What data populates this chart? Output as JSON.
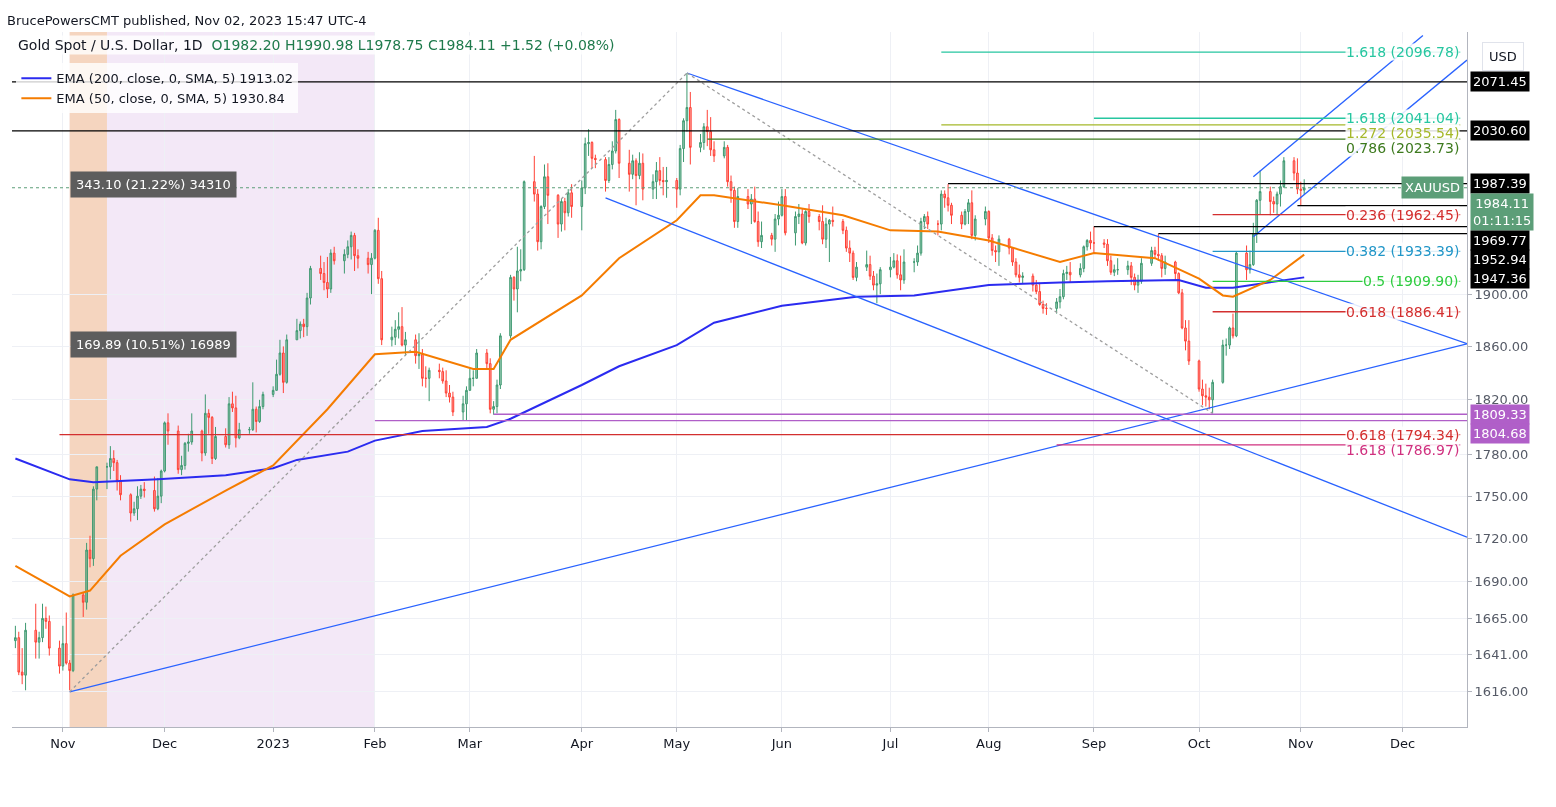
{
  "chart_data": {
    "type": "candlestick",
    "title": "Gold Spot / U.S. Dollar, 1D",
    "subtitle": "O1982.20 H1990.98 L1978.75 C1984.11 +1.52 (+0.08%)",
    "ylabel": "USD",
    "x": [
      "2022-10-18",
      "2022-10-19",
      "2022-10-20",
      "2022-10-21",
      "2022-10-24",
      "2022-10-25",
      "2022-10-26",
      "2022-10-27",
      "2022-10-28",
      "2022-10-31",
      "2022-11-01",
      "2022-11-02",
      "2022-11-03",
      "2022-11-04",
      "2022-11-07",
      "2022-11-08",
      "2022-11-09",
      "2022-11-10",
      "2022-11-11",
      "2022-11-14",
      "2022-11-15",
      "2022-11-16",
      "2022-11-17",
      "2022-11-18",
      "2022-11-21",
      "2022-11-22",
      "2022-11-23",
      "2022-11-24",
      "2022-11-25",
      "2022-11-28",
      "2022-11-29",
      "2022-11-30",
      "2022-12-01",
      "2022-12-02",
      "2022-12-05",
      "2022-12-06",
      "2022-12-07",
      "2022-12-08",
      "2022-12-09",
      "2022-12-12",
      "2022-12-13",
      "2022-12-14",
      "2022-12-15",
      "2022-12-16",
      "2022-12-19",
      "2022-12-20",
      "2022-12-21",
      "2022-12-22",
      "2022-12-23",
      "2022-12-26",
      "2022-12-27",
      "2022-12-28",
      "2022-12-29",
      "2022-12-30",
      "2023-01-02",
      "2023-01-03",
      "2023-01-04",
      "2023-01-05",
      "2023-01-06",
      "2023-01-09",
      "2023-01-10",
      "2023-01-11",
      "2023-01-12",
      "2023-01-13",
      "2023-01-16",
      "2023-01-17",
      "2023-01-18",
      "2023-01-19",
      "2023-01-20",
      "2023-01-23",
      "2023-01-24",
      "2023-01-25",
      "2023-01-26",
      "2023-01-27",
      "2023-01-30",
      "2023-01-31",
      "2023-02-01",
      "2023-02-02",
      "2023-02-03",
      "2023-02-06",
      "2023-02-07",
      "2023-02-08",
      "2023-02-09",
      "2023-02-10",
      "2023-02-13",
      "2023-02-14",
      "2023-02-15",
      "2023-02-16",
      "2023-02-17",
      "2023-02-20",
      "2023-02-21",
      "2023-02-22",
      "2023-02-23",
      "2023-02-24",
      "2023-02-27",
      "2023-02-28",
      "2023-03-01",
      "2023-03-02",
      "2023-03-03",
      "2023-03-06",
      "2023-03-07",
      "2023-03-08",
      "2023-03-09",
      "2023-03-10",
      "2023-03-13",
      "2023-03-14",
      "2023-03-15",
      "2023-03-16",
      "2023-03-17",
      "2023-03-20",
      "2023-03-21",
      "2023-03-22",
      "2023-03-23",
      "2023-03-24",
      "2023-03-27",
      "2023-03-28",
      "2023-03-29",
      "2023-03-30",
      "2023-03-31",
      "2023-04-03",
      "2023-04-04",
      "2023-04-05",
      "2023-04-06",
      "2023-04-07",
      "2023-04-10",
      "2023-04-11",
      "2023-04-12",
      "2023-04-13",
      "2023-04-14",
      "2023-04-17",
      "2023-04-18",
      "2023-04-19",
      "2023-04-20",
      "2023-04-21",
      "2023-04-24",
      "2023-04-25",
      "2023-04-26",
      "2023-04-27",
      "2023-04-28",
      "2023-05-01",
      "2023-05-02",
      "2023-05-03",
      "2023-05-04",
      "2023-05-05",
      "2023-05-08",
      "2023-05-09",
      "2023-05-10",
      "2023-05-11",
      "2023-05-12",
      "2023-05-15",
      "2023-05-16",
      "2023-05-17",
      "2023-05-18",
      "2023-05-19",
      "2023-05-22",
      "2023-05-23",
      "2023-05-24",
      "2023-05-25",
      "2023-05-26",
      "2023-05-29",
      "2023-05-30",
      "2023-05-31",
      "2023-06-01",
      "2023-06-02",
      "2023-06-05",
      "2023-06-06",
      "2023-06-07",
      "2023-06-08",
      "2023-06-09",
      "2023-06-12",
      "2023-06-13",
      "2023-06-14",
      "2023-06-15",
      "2023-06-16",
      "2023-06-19",
      "2023-06-20",
      "2023-06-21",
      "2023-06-22",
      "2023-06-23",
      "2023-06-26",
      "2023-06-27",
      "2023-06-28",
      "2023-06-29",
      "2023-06-30",
      "2023-07-03",
      "2023-07-04",
      "2023-07-05",
      "2023-07-06",
      "2023-07-07",
      "2023-07-10",
      "2023-07-11",
      "2023-07-12",
      "2023-07-13",
      "2023-07-14",
      "2023-07-17",
      "2023-07-18",
      "2023-07-19",
      "2023-07-20",
      "2023-07-21",
      "2023-07-24",
      "2023-07-25",
      "2023-07-26",
      "2023-07-27",
      "2023-07-28",
      "2023-07-31",
      "2023-08-01",
      "2023-08-02",
      "2023-08-03",
      "2023-08-04",
      "2023-08-07",
      "2023-08-08",
      "2023-08-09",
      "2023-08-10",
      "2023-08-11",
      "2023-08-14",
      "2023-08-15",
      "2023-08-16",
      "2023-08-17",
      "2023-08-18",
      "2023-08-21",
      "2023-08-22",
      "2023-08-23",
      "2023-08-24",
      "2023-08-25",
      "2023-08-28",
      "2023-08-29",
      "2023-08-30",
      "2023-08-31",
      "2023-09-01",
      "2023-09-04",
      "2023-09-05",
      "2023-09-06",
      "2023-09-07",
      "2023-09-08",
      "2023-09-11",
      "2023-09-12",
      "2023-09-13",
      "2023-09-14",
      "2023-09-15",
      "2023-09-18",
      "2023-09-19",
      "2023-09-20",
      "2023-09-21",
      "2023-09-22",
      "2023-09-25",
      "2023-09-26",
      "2023-09-27",
      "2023-09-28",
      "2023-09-29",
      "2023-10-02",
      "2023-10-03",
      "2023-10-04",
      "2023-10-05",
      "2023-10-06",
      "2023-10-09",
      "2023-10-10",
      "2023-10-11",
      "2023-10-12",
      "2023-10-13",
      "2023-10-16",
      "2023-10-17",
      "2023-10-18",
      "2023-10-19",
      "2023-10-20",
      "2023-10-23",
      "2023-10-24",
      "2023-10-25",
      "2023-10-26",
      "2023-10-27",
      "2023-10-30",
      "2023-10-31",
      "2023-11-01",
      "2023-11-02"
    ],
    "ohlc": [
      [
        1650,
        1660,
        1645,
        1652
      ],
      [
        1652,
        1656,
        1627,
        1629
      ],
      [
        1629,
        1645,
        1621,
        1627
      ],
      [
        1627,
        1662,
        1617,
        1657
      ],
      [
        1657,
        1675,
        1638,
        1649
      ],
      [
        1649,
        1656,
        1638,
        1652
      ],
      [
        1652,
        1675,
        1649,
        1665
      ],
      [
        1665,
        1673,
        1658,
        1663
      ],
      [
        1663,
        1667,
        1640,
        1645
      ],
      [
        1645,
        1650,
        1628,
        1633
      ],
      [
        1633,
        1660,
        1630,
        1648
      ],
      [
        1648,
        1669,
        1634,
        1635
      ],
      [
        1635,
        1637,
        1617,
        1630
      ],
      [
        1630,
        1682,
        1629,
        1681
      ],
      [
        1681,
        1683,
        1666,
        1676
      ],
      [
        1676,
        1717,
        1671,
        1712
      ],
      [
        1712,
        1722,
        1700,
        1706
      ],
      [
        1706,
        1757,
        1701,
        1755
      ],
      [
        1755,
        1771,
        1747,
        1771
      ],
      [
        1771,
        1774,
        1755,
        1771
      ],
      [
        1771,
        1786,
        1762,
        1777
      ],
      [
        1777,
        1783,
        1768,
        1774
      ],
      [
        1774,
        1776,
        1754,
        1761
      ],
      [
        1761,
        1765,
        1747,
        1751
      ],
      [
        1751,
        1752,
        1732,
        1738
      ],
      [
        1738,
        1746,
        1736,
        1741
      ],
      [
        1741,
        1757,
        1733,
        1750
      ],
      [
        1750,
        1758,
        1748,
        1755
      ],
      [
        1755,
        1760,
        1749,
        1754
      ],
      [
        1754,
        1764,
        1739,
        1741
      ],
      [
        1741,
        1763,
        1740,
        1750
      ],
      [
        1750,
        1769,
        1745,
        1768
      ],
      [
        1768,
        1804,
        1767,
        1803
      ],
      [
        1803,
        1810,
        1787,
        1797
      ],
      [
        1797,
        1801,
        1766,
        1769
      ],
      [
        1769,
        1779,
        1765,
        1772
      ],
      [
        1772,
        1789,
        1769,
        1788
      ],
      [
        1788,
        1795,
        1782,
        1789
      ],
      [
        1789,
        1810,
        1787,
        1797
      ],
      [
        1797,
        1798,
        1775,
        1781
      ],
      [
        1781,
        1824,
        1779,
        1810
      ],
      [
        1810,
        1813,
        1795,
        1807
      ],
      [
        1807,
        1808,
        1773,
        1777
      ],
      [
        1777,
        1800,
        1776,
        1793
      ],
      [
        1793,
        1799,
        1785,
        1787
      ],
      [
        1787,
        1822,
        1784,
        1817
      ],
      [
        1817,
        1826,
        1811,
        1814
      ],
      [
        1814,
        1823,
        1785,
        1792
      ],
      [
        1792,
        1803,
        1791,
        1798
      ],
      [
        1798,
        1800,
        1795,
        1798
      ],
      [
        1798,
        1833,
        1797,
        1813
      ],
      [
        1813,
        1815,
        1796,
        1804
      ],
      [
        1804,
        1820,
        1803,
        1815
      ],
      [
        1815,
        1826,
        1813,
        1824
      ],
      [
        1824,
        1830,
        1822,
        1827
      ],
      [
        1827,
        1850,
        1827,
        1839
      ],
      [
        1839,
        1865,
        1838,
        1855
      ],
      [
        1855,
        1860,
        1825,
        1833
      ],
      [
        1833,
        1869,
        1832,
        1865
      ],
      [
        1865,
        1881,
        1865,
        1872
      ],
      [
        1872,
        1879,
        1866,
        1877
      ],
      [
        1877,
        1881,
        1867,
        1875
      ],
      [
        1875,
        1901,
        1868,
        1897
      ],
      [
        1897,
        1922,
        1892,
        1920
      ],
      [
        1920,
        1930,
        1911,
        1916
      ],
      [
        1916,
        1925,
        1903,
        1909
      ],
      [
        1909,
        1929,
        1897,
        1904
      ],
      [
        1904,
        1935,
        1901,
        1932
      ],
      [
        1932,
        1937,
        1923,
        1926
      ],
      [
        1926,
        1935,
        1916,
        1931
      ],
      [
        1931,
        1942,
        1928,
        1937
      ],
      [
        1937,
        1949,
        1927,
        1946
      ],
      [
        1946,
        1948,
        1918,
        1930
      ],
      [
        1930,
        1935,
        1920,
        1928
      ],
      [
        1928,
        1933,
        1916,
        1923
      ],
      [
        1923,
        1932,
        1900,
        1928
      ],
      [
        1928,
        1951,
        1927,
        1950
      ],
      [
        1950,
        1960,
        1908,
        1912
      ],
      [
        1912,
        1918,
        1861,
        1865
      ],
      [
        1865,
        1875,
        1860,
        1867
      ],
      [
        1867,
        1880,
        1861,
        1873
      ],
      [
        1873,
        1886,
        1866,
        1875
      ],
      [
        1875,
        1890,
        1860,
        1861
      ],
      [
        1861,
        1871,
        1853,
        1865
      ],
      [
        1865,
        1869,
        1847,
        1853
      ],
      [
        1853,
        1870,
        1843,
        1854
      ],
      [
        1854,
        1858,
        1830,
        1836
      ],
      [
        1836,
        1845,
        1829,
        1836
      ],
      [
        1836,
        1844,
        1819,
        1842
      ],
      [
        1842,
        1847,
        1836,
        1841
      ],
      [
        1841,
        1844,
        1832,
        1834
      ],
      [
        1834,
        1842,
        1822,
        1825
      ],
      [
        1825,
        1831,
        1818,
        1822
      ],
      [
        1822,
        1826,
        1808,
        1811
      ],
      [
        1811,
        1823,
        1805,
        1817
      ],
      [
        1817,
        1830,
        1805,
        1827
      ],
      [
        1827,
        1843,
        1827,
        1836
      ],
      [
        1836,
        1842,
        1830,
        1836
      ],
      [
        1836,
        1858,
        1836,
        1855
      ],
      [
        1855,
        1858,
        1843,
        1847
      ],
      [
        1847,
        1851,
        1810,
        1813
      ],
      [
        1813,
        1819,
        1809,
        1815
      ],
      [
        1815,
        1835,
        1810,
        1831
      ],
      [
        1831,
        1870,
        1828,
        1868
      ],
      [
        1868,
        1915,
        1866,
        1913
      ],
      [
        1913,
        1914,
        1895,
        1904
      ],
      [
        1904,
        1937,
        1886,
        1918
      ],
      [
        1918,
        1935,
        1910,
        1919
      ],
      [
        1919,
        1990,
        1918,
        1989
      ],
      [
        1989,
        2010,
        1973,
        1979
      ],
      [
        1979,
        1983,
        1934,
        1941
      ],
      [
        1941,
        1970,
        1935,
        1969
      ],
      [
        1969,
        2003,
        1967,
        1993
      ],
      [
        1993,
        2004,
        1955,
        1978
      ],
      [
        1978,
        1979,
        1944,
        1955
      ],
      [
        1955,
        1975,
        1949,
        1973
      ],
      [
        1973,
        1976,
        1950,
        1964
      ],
      [
        1964,
        1983,
        1961,
        1980
      ],
      [
        1980,
        1987,
        1960,
        1969
      ],
      [
        1969,
        1990,
        1950,
        1984
      ],
      [
        1984,
        2025,
        1979,
        2020
      ],
      [
        2020,
        2032,
        2010,
        2021
      ],
      [
        2021,
        2022,
        2000,
        2008
      ],
      [
        2008,
        2011,
        2000,
        2007
      ],
      [
        2007,
        2009,
        1981,
        1990
      ],
      [
        1990,
        2009,
        1988,
        2003
      ],
      [
        2003,
        2022,
        1999,
        2014
      ],
      [
        2014,
        2048,
        2012,
        2040
      ],
      [
        2040,
        2041,
        1992,
        2004
      ],
      [
        2004,
        2015,
        1981,
        1995
      ],
      [
        1995,
        2011,
        1991,
        2006
      ],
      [
        2006,
        2008,
        1970,
        1994
      ],
      [
        1994,
        2013,
        1991,
        2004
      ],
      [
        2004,
        2012,
        1974,
        1983
      ],
      [
        1983,
        1995,
        1975,
        1989
      ],
      [
        1989,
        2005,
        1975,
        1998
      ],
      [
        1998,
        2009,
        1986,
        1990
      ],
      [
        1990,
        2001,
        1978,
        1989
      ],
      [
        1989,
        2001,
        1976,
        1990
      ],
      [
        1990,
        1992,
        1968,
        1983
      ],
      [
        1983,
        2019,
        1978,
        2016
      ],
      [
        2016,
        2041,
        2005,
        2039
      ],
      [
        2039,
        2079,
        2030,
        2050
      ],
      [
        2050,
        2063,
        2003,
        2017
      ],
      [
        2017,
        2028,
        2013,
        2021
      ],
      [
        2021,
        2037,
        2015,
        2034
      ],
      [
        2034,
        2048,
        2018,
        2030
      ],
      [
        2030,
        2042,
        2010,
        2015
      ],
      [
        2015,
        2022,
        2005,
        2010
      ],
      [
        2010,
        2022,
        2008,
        2017
      ],
      [
        2017,
        2019,
        1985,
        1989
      ],
      [
        1989,
        1994,
        1972,
        1982
      ],
      [
        1982,
        1985,
        1952,
        1957
      ],
      [
        1957,
        1984,
        1952,
        1977
      ],
      [
        1977,
        1983,
        1967,
        1971
      ],
      [
        1971,
        1979,
        1955,
        1975
      ],
      [
        1975,
        1985,
        1956,
        1957
      ],
      [
        1957,
        1965,
        1937,
        1941
      ],
      [
        1941,
        1957,
        1936,
        1946
      ],
      [
        1946,
        1948,
        1938,
        1943
      ],
      [
        1943,
        1963,
        1933,
        1959
      ],
      [
        1959,
        1973,
        1954,
        1962
      ],
      [
        1962,
        1983,
        1961,
        1977
      ],
      [
        1977,
        1983,
        1946,
        1948
      ],
      [
        1948,
        1965,
        1938,
        1961
      ],
      [
        1961,
        1971,
        1955,
        1963
      ],
      [
        1963,
        1967,
        1939,
        1940
      ],
      [
        1940,
        1966,
        1938,
        1965
      ],
      [
        1965,
        1971,
        1956,
        1961
      ],
      [
        1961,
        1963,
        1950,
        1957
      ],
      [
        1957,
        1970,
        1939,
        1943
      ],
      [
        1943,
        1960,
        1936,
        1955
      ],
      [
        1955,
        1959,
        1925,
        1958
      ],
      [
        1958,
        1969,
        1953,
        1957
      ],
      [
        1957,
        1959,
        1947,
        1950
      ],
      [
        1950,
        1953,
        1933,
        1936
      ],
      [
        1936,
        1942,
        1925,
        1932
      ],
      [
        1932,
        1934,
        1911,
        1913
      ],
      [
        1913,
        1925,
        1910,
        1921
      ],
      [
        1921,
        1934,
        1918,
        1923
      ],
      [
        1923,
        1930,
        1911,
        1914
      ],
      [
        1914,
        1918,
        1903,
        1907
      ],
      [
        1907,
        1916,
        1893,
        1908
      ],
      [
        1908,
        1921,
        1900,
        1919
      ],
      [
        1919,
        1929,
        1913,
        1921
      ],
      [
        1921,
        1932,
        1920,
        1926
      ],
      [
        1926,
        1931,
        1912,
        1915
      ],
      [
        1915,
        1930,
        1903,
        1911
      ],
      [
        1911,
        1935,
        1908,
        1925
      ],
      [
        1925,
        1928,
        1917,
        1925
      ],
      [
        1925,
        1938,
        1922,
        1932
      ],
      [
        1932,
        1960,
        1930,
        1957
      ],
      [
        1957,
        1963,
        1951,
        1961
      ],
      [
        1961,
        1965,
        1951,
        1955
      ],
      [
        1955,
        1958,
        1946,
        1955
      ],
      [
        1955,
        1982,
        1950,
        1979
      ],
      [
        1979,
        1982,
        1968,
        1976
      ],
      [
        1976,
        1987,
        1965,
        1970
      ],
      [
        1970,
        1972,
        1955,
        1962
      ],
      [
        1962,
        1965,
        1951,
        1955
      ],
      [
        1955,
        1967,
        1954,
        1965
      ],
      [
        1965,
        1975,
        1955,
        1972
      ],
      [
        1972,
        1982,
        1943,
        1946
      ],
      [
        1946,
        1962,
        1942,
        1959
      ],
      [
        1959,
        1969,
        1954,
        1965
      ],
      [
        1965,
        1966,
        1940,
        1944
      ],
      [
        1944,
        1947,
        1930,
        1934
      ],
      [
        1934,
        1938,
        1925,
        1933
      ],
      [
        1933,
        1946,
        1922,
        1943
      ],
      [
        1943,
        1944,
        1931,
        1936
      ],
      [
        1936,
        1936,
        1922,
        1925
      ],
      [
        1925,
        1928,
        1913,
        1915
      ],
      [
        1915,
        1923,
        1909,
        1913
      ],
      [
        1913,
        1917,
        1908,
        1914
      ],
      [
        1914,
        1916,
        1902,
        1907
      ],
      [
        1907,
        1911,
        1900,
        1902
      ],
      [
        1902,
        1908,
        1891,
        1892
      ],
      [
        1892,
        1895,
        1885,
        1889
      ],
      [
        1889,
        1893,
        1884,
        1889
      ],
      [
        1889,
        1897,
        1885,
        1894
      ],
      [
        1894,
        1904,
        1889,
        1898
      ],
      [
        1898,
        1919,
        1896,
        1916
      ],
      [
        1916,
        1922,
        1911,
        1917
      ],
      [
        1917,
        1925,
        1909,
        1915
      ],
      [
        1915,
        1924,
        1913,
        1920
      ],
      [
        1920,
        1938,
        1917,
        1937
      ],
      [
        1937,
        1943,
        1934,
        1942
      ],
      [
        1942,
        1949,
        1935,
        1940
      ],
      [
        1940,
        1953,
        1932,
        1940
      ],
      [
        1940,
        1943,
        1936,
        1939
      ],
      [
        1939,
        1943,
        1922,
        1926
      ],
      [
        1926,
        1930,
        1915,
        1917
      ],
      [
        1917,
        1923,
        1914,
        1919
      ],
      [
        1919,
        1928,
        1915,
        1919
      ],
      [
        1919,
        1926,
        1915,
        1922
      ],
      [
        1922,
        1925,
        1907,
        1913
      ],
      [
        1913,
        1916,
        1903,
        1907
      ],
      [
        1907,
        1915,
        1901,
        1910
      ],
      [
        1910,
        1928,
        1908,
        1924
      ],
      [
        1924,
        1937,
        1922,
        1934
      ],
      [
        1934,
        1937,
        1928,
        1931
      ],
      [
        1931,
        1947,
        1926,
        1930
      ],
      [
        1930,
        1932,
        1913,
        1920
      ],
      [
        1920,
        1930,
        1915,
        1925
      ],
      [
        1925,
        1926,
        1911,
        1916
      ],
      [
        1916,
        1917,
        1900,
        1901
      ],
      [
        1901,
        1904,
        1873,
        1874
      ],
      [
        1874,
        1880,
        1857,
        1864
      ],
      [
        1864,
        1880,
        1846,
        1849
      ],
      [
        1849,
        1850,
        1826,
        1828
      ],
      [
        1828,
        1835,
        1816,
        1823
      ],
      [
        1823,
        1832,
        1815,
        1822
      ],
      [
        1822,
        1829,
        1813,
        1820
      ],
      [
        1820,
        1835,
        1810,
        1833
      ],
      [
        1833,
        1865,
        1832,
        1861
      ],
      [
        1861,
        1866,
        1853,
        1861
      ],
      [
        1861,
        1875,
        1858,
        1874
      ],
      [
        1874,
        1885,
        1866,
        1868
      ],
      [
        1868,
        1933,
        1867,
        1932
      ],
      [
        1932,
        1938,
        1911,
        1919
      ],
      [
        1919,
        1934,
        1916,
        1923
      ],
      [
        1923,
        1956,
        1922,
        1947
      ],
      [
        1947,
        1975,
        1940,
        1974
      ],
      [
        1974,
        1998,
        1963,
        1981
      ],
      [
        1981,
        1985,
        1962,
        1973
      ],
      [
        1973,
        1977,
        1964,
        1971
      ],
      [
        1971,
        1981,
        1962,
        1979
      ],
      [
        1979,
        1990,
        1969,
        1985
      ],
      [
        1985,
        2009,
        1984,
        2006
      ],
      [
        2006,
        2009,
        1990,
        1996
      ],
      [
        1996,
        2008,
        1979,
        1983
      ],
      [
        1983,
        1989,
        1970,
        1982
      ],
      [
        1982.2,
        1990.98,
        1978.75,
        1984.11
      ]
    ],
    "series": [
      {
        "name": "EMA (200, close, 0, SMA, 5) 1913.02",
        "type": "line",
        "color": "#2b2bf0",
        "x": [
          "2022-10-18",
          "2022-11-03",
          "2022-11-10",
          "2022-11-29",
          "2022-12-19",
          "2023-01-02",
          "2023-01-09",
          "2023-01-24",
          "2023-02-01",
          "2023-02-15",
          "2023-03-06",
          "2023-03-13",
          "2023-04-03",
          "2023-04-14",
          "2023-05-01",
          "2023-05-12",
          "2023-06-01",
          "2023-06-23",
          "2023-07-10",
          "2023-08-01",
          "2023-08-22",
          "2023-09-05",
          "2023-09-26",
          "2023-10-04",
          "2023-10-12",
          "2023-11-02"
        ],
        "values": [
          1777,
          1762,
          1760,
          1762,
          1765,
          1770,
          1776,
          1782,
          1790,
          1797,
          1800,
          1806,
          1831,
          1845,
          1861,
          1878,
          1891,
          1898,
          1899,
          1907,
          1909,
          1910,
          1911,
          1905,
          1905,
          1913.02
        ]
      },
      {
        "name": "EMA (50, close, 0, SMA, 5) 1930.84",
        "type": "line",
        "color": "#f57c00",
        "x": [
          "2022-10-18",
          "2022-10-31",
          "2022-11-03",
          "2022-11-09",
          "2022-11-18",
          "2022-12-01",
          "2022-12-19",
          "2023-01-02",
          "2023-01-18",
          "2023-02-01",
          "2023-02-13",
          "2023-03-02",
          "2023-03-08",
          "2023-03-13",
          "2023-04-03",
          "2023-04-14",
          "2023-05-01",
          "2023-05-08",
          "2023-05-12",
          "2023-06-01",
          "2023-06-19",
          "2023-07-03",
          "2023-07-17",
          "2023-08-01",
          "2023-08-22",
          "2023-09-01",
          "2023-09-19",
          "2023-10-02",
          "2023-10-09",
          "2023-10-12",
          "2023-10-23",
          "2023-11-02"
        ],
        "values": [
          1701,
          1684,
          1680,
          1684,
          1708,
          1730,
          1754,
          1772,
          1813,
          1854,
          1856,
          1843,
          1843,
          1865,
          1899,
          1928,
          1958,
          1978,
          1978,
          1970,
          1962,
          1950,
          1949,
          1942,
          1925,
          1932,
          1928,
          1912,
          1899,
          1898,
          1911,
          1930.84
        ]
      },
      {
        "type": "line",
        "color": "#2962ff",
        "x": [
          "2022-11-03",
          "2023-12-20"
        ],
        "values": [
          1616,
          1862
        ]
      },
      {
        "type": "line",
        "color": "#2962ff",
        "x": [
          "2023-05-04",
          "2023-12-20"
        ],
        "values": [
          2079,
          1862
        ]
      },
      {
        "type": "line",
        "color": "#2962ff",
        "x": [
          "2023-04-10",
          "2023-12-20"
        ],
        "values": [
          1976,
          1721
        ]
      },
      {
        "type": "line",
        "color": "#2962ff",
        "x": [
          "2023-10-18",
          "2023-12-07"
        ],
        "values": [
          1993,
          2111
        ]
      },
      {
        "type": "line",
        "color": "#2962ff",
        "x": [
          "2023-10-18",
          "2023-12-20"
        ],
        "values": [
          1945,
          2090
        ]
      },
      {
        "type": "line",
        "color": "#9e9e9e",
        "line_style": "dotted",
        "x": [
          "2022-11-03",
          "2023-05-04"
        ],
        "values": [
          1616,
          2079
        ]
      },
      {
        "type": "line",
        "color": "#9e9e9e",
        "line_style": "dotted",
        "x": [
          "2023-05-04",
          "2023-10-06"
        ],
        "values": [
          2079,
          1810
        ]
      },
      {
        "type": "line",
        "color": "#26c6a0",
        "x": [
          "2023-07-18",
          "2023-12-18"
        ],
        "values": [
          2096.78,
          2096.78
        ]
      },
      {
        "type": "line",
        "color": "#26c6a0",
        "x": [
          "2023-09-01",
          "2023-12-18"
        ],
        "values": [
          2041.04,
          2041.04
        ]
      },
      {
        "type": "line",
        "color": "#a5b82a",
        "x": [
          "2023-07-18",
          "2023-12-18"
        ],
        "values": [
          2035.54,
          2035.54
        ]
      },
      {
        "type": "line",
        "color": "#3d7a1e",
        "x": [
          "2023-05-10",
          "2023-12-18"
        ],
        "values": [
          2023.73,
          2023.73
        ]
      },
      {
        "type": "line",
        "color": "#d32f2f",
        "x": [
          "2023-10-06",
          "2023-12-18"
        ],
        "values": [
          1962.45,
          1962.45
        ]
      },
      {
        "type": "line",
        "color": "#2196c8",
        "x": [
          "2023-10-06",
          "2023-12-18"
        ],
        "values": [
          1933.39,
          1933.39
        ]
      },
      {
        "type": "line",
        "color": "#2ecc40",
        "x": [
          "2023-10-06",
          "2023-12-18"
        ],
        "values": [
          1909.9,
          1909.9
        ]
      },
      {
        "type": "line",
        "color": "#d32f2f",
        "x": [
          "2023-10-06",
          "2023-12-18"
        ],
        "values": [
          1886.41,
          1886.41
        ]
      },
      {
        "type": "line",
        "color": "#d32f2f",
        "x": [
          "2022-10-31",
          "2023-12-18"
        ],
        "values": [
          1794.34,
          1794.34
        ]
      },
      {
        "type": "line",
        "color": "#d0307f",
        "x": [
          "2023-08-21",
          "2023-12-18"
        ],
        "values": [
          1786.97,
          1786.97
        ]
      },
      {
        "type": "line",
        "color": "#000000",
        "x": [
          "2022-10-17",
          "2023-12-20"
        ],
        "values": [
          2071.45,
          2071.45
        ]
      },
      {
        "type": "line",
        "color": "#000000",
        "x": [
          "2022-10-17",
          "2023-12-20"
        ],
        "values": [
          2030.6,
          2030.6
        ]
      },
      {
        "type": "line",
        "color": "#000000",
        "x": [
          "2023-07-20",
          "2023-12-20"
        ],
        "values": [
          1987.39,
          1987.39
        ]
      },
      {
        "type": "line",
        "color": "#000000",
        "x": [
          "2023-10-31",
          "2023-12-20"
        ],
        "values": [
          1969.77,
          1969.77
        ]
      },
      {
        "type": "line",
        "color": "#000000",
        "x": [
          "2023-09-01",
          "2023-12-20"
        ],
        "values": [
          1952.94,
          1952.94
        ]
      },
      {
        "type": "line",
        "color": "#000000",
        "x": [
          "2023-09-20",
          "2023-12-20"
        ],
        "values": [
          1947.36,
          1947.36
        ]
      },
      {
        "type": "line",
        "color": "#b05fc8",
        "x": [
          "2023-03-08",
          "2023-12-20"
        ],
        "values": [
          1809.33,
          1809.33
        ]
      },
      {
        "type": "line",
        "color": "#b05fc8",
        "x": [
          "2023-02-01",
          "2023-12-20"
        ],
        "values": [
          1804.68,
          1804.68
        ]
      }
    ],
    "ref_lines": [
      {
        "axis": "y",
        "value": 1984.11,
        "label": "XAUUSD",
        "color": "#5c9e78",
        "line_style": "dotted"
      }
    ],
    "bands": [
      {
        "axis": "x",
        "from": "2022-11-03",
        "to": "2023-02-01",
        "label": "343.10 (21.22%) 34310",
        "color": "#f3e8f7"
      },
      {
        "axis": "x",
        "from": "2022-11-03",
        "to": "2022-11-14",
        "label": "169.89 (10.51%) 16989",
        "color": "#f5d5bf"
      }
    ],
    "annotations": [
      "BrucePowersCMT published, Nov 02, 2023 15:47 UTC-4",
      {
        "text": "1984.11\n01:11:15",
        "x": "2023-12-20",
        "y": 1984.11
      },
      {
        "text": "1.618 (2096.78)",
        "x": "2023-12-18",
        "y": 2096.78
      },
      {
        "text": "1.618 (2041.04)",
        "x": "2023-12-18",
        "y": 2041.04
      },
      {
        "text": "1.272 (2035.54)",
        "x": "2023-12-18",
        "y": 2035.54
      },
      {
        "text": "0.786 (2023.73)",
        "x": "2023-12-18",
        "y": 2023.73
      },
      {
        "text": "0.236 (1962.45)",
        "x": "2023-12-18",
        "y": 1962.45
      },
      {
        "text": "0.382 (1933.39)",
        "x": "2023-12-18",
        "y": 1933.39
      },
      {
        "text": "0.5 (1909.90)",
        "x": "2023-12-18",
        "y": 1909.9
      },
      {
        "text": "0.618 (1886.41)",
        "x": "2023-12-18",
        "y": 1886.41
      },
      {
        "text": "0.618 (1794.34)",
        "x": "2023-12-18",
        "y": 1794.34
      },
      {
        "text": "1.618 (1786.97)",
        "x": "2023-12-18",
        "y": 1786.97
      },
      {
        "text": "2071.45",
        "x": "2023-12-20",
        "y": 2071.45
      },
      {
        "text": "2030.60",
        "x": "2023-12-20",
        "y": 2030.6
      },
      {
        "text": "1987.39",
        "x": "2023-12-20",
        "y": 1987.39
      },
      {
        "text": "1969.77",
        "x": "2023-12-20",
        "y": 1969.77
      },
      {
        "text": "1952.94",
        "x": "2023-12-20",
        "y": 1952.94
      },
      {
        "text": "1947.36",
        "x": "2023-12-20",
        "y": 1947.36
      },
      {
        "text": "1809.33",
        "x": "2023-12-20",
        "y": 1809.33
      },
      {
        "text": "1804.68",
        "x": "2023-12-20",
        "y": 1804.68
      }
    ],
    "xlim": [
      "2022-10-17",
      "2023-12-20"
    ],
    "ylim": [
      1593,
      2114
    ],
    "xticks": [
      {
        "value": "2022-11-01",
        "label": "Nov"
      },
      {
        "value": "2022-12-01",
        "label": "Dec"
      },
      {
        "value": "2023-01-02",
        "label": "2023"
      },
      {
        "value": "2023-02-01",
        "label": "Feb"
      },
      {
        "value": "2023-03-01",
        "label": "Mar"
      },
      {
        "value": "2023-04-03",
        "label": "Apr"
      },
      {
        "value": "2023-05-01",
        "label": "May"
      },
      {
        "value": "2023-06-01",
        "label": "Jun"
      },
      {
        "value": "2023-07-03",
        "label": "Jul"
      },
      {
        "value": "2023-08-01",
        "label": "Aug"
      },
      {
        "value": "2023-09-01",
        "label": "Sep"
      },
      {
        "value": "2023-10-02",
        "label": "Oct"
      },
      {
        "value": "2023-11-01",
        "label": "Nov"
      },
      {
        "value": "2023-12-01",
        "label": "Dec"
      }
    ],
    "yticks": [
      {
        "value": 1616,
        "label": "1616.00"
      },
      {
        "value": 1641,
        "label": "1641.00"
      },
      {
        "value": 1665,
        "label": "1665.00"
      },
      {
        "value": 1690,
        "label": "1690.00"
      },
      {
        "value": 1720,
        "label": "1720.00"
      },
      {
        "value": 1750,
        "label": "1750.00"
      },
      {
        "value": 1780,
        "label": "1780.00"
      },
      {
        "value": 1820,
        "label": "1820.00"
      },
      {
        "value": 1860,
        "label": "1860.00"
      },
      {
        "value": 1900,
        "label": "1900.00"
      }
    ],
    "log": true,
    "grid": true,
    "legend": "top left"
  }
}
